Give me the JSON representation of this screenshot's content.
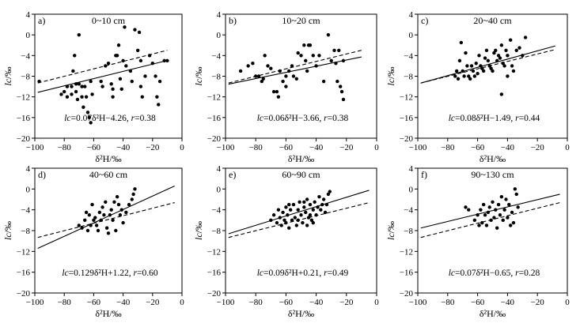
{
  "figure": {
    "description_visible": false
  },
  "chart_data": [
    {
      "type": "scatter",
      "panel_label": "a)",
      "title": "0~10 cm",
      "xlabel": "δ²H/‰",
      "ylabel": "lc/‰",
      "xlim": [
        -100,
        0
      ],
      "ylim": [
        -20,
        4
      ],
      "xticks": [
        -100,
        -80,
        -60,
        -40,
        -20,
        0
      ],
      "yticks": [
        -20,
        -16,
        -12,
        -8,
        -4,
        0,
        4
      ],
      "points": [
        [
          -97,
          -9
        ],
        [
          -82,
          -11.5
        ],
        [
          -80,
          -11
        ],
        [
          -78,
          -10
        ],
        [
          -78,
          -12
        ],
        [
          -75,
          -10
        ],
        [
          -75,
          -11.5
        ],
        [
          -74,
          -7
        ],
        [
          -73,
          -4
        ],
        [
          -72,
          -9.5
        ],
        [
          -72,
          -11
        ],
        [
          -71,
          -12.5
        ],
        [
          -70,
          0
        ],
        [
          -70,
          -9.5
        ],
        [
          -68,
          -10
        ],
        [
          -68,
          -12
        ],
        [
          -67,
          -14
        ],
        [
          -66,
          -10
        ],
        [
          -65,
          -12
        ],
        [
          -64,
          -15
        ],
        [
          -63,
          -16
        ],
        [
          -62,
          -17
        ],
        [
          -62,
          -9
        ],
        [
          -61,
          -11.5
        ],
        [
          -55,
          -9
        ],
        [
          -54,
          -10
        ],
        [
          -52,
          -6
        ],
        [
          -50,
          -5.5
        ],
        [
          -48,
          -9.5
        ],
        [
          -47,
          -10.5
        ],
        [
          -47,
          -12
        ],
        [
          -45,
          -4
        ],
        [
          -44,
          -4
        ],
        [
          -43,
          -2
        ],
        [
          -42,
          -8.5
        ],
        [
          -41,
          -10.5
        ],
        [
          -40,
          -5
        ],
        [
          -39,
          1.5
        ],
        [
          -38,
          -6
        ],
        [
          -35,
          -7
        ],
        [
          -34,
          -9
        ],
        [
          -32,
          1
        ],
        [
          -30,
          -3
        ],
        [
          -29,
          0.5
        ],
        [
          -28,
          -5
        ],
        [
          -28,
          -10
        ],
        [
          -27,
          -12
        ],
        [
          -25,
          -8
        ],
        [
          -22,
          -4
        ],
        [
          -20,
          -5.5
        ],
        [
          -18,
          -8
        ],
        [
          -17,
          -12
        ],
        [
          -16,
          -13.5
        ],
        [
          -15,
          -9
        ],
        [
          -12,
          -5
        ],
        [
          -10,
          -5
        ]
      ],
      "fit_line": {
        "slope": 0.07,
        "intercept": -4.26,
        "x_range": [
          -98,
          -10
        ],
        "style": "solid"
      },
      "reference_line": {
        "slope": 0.072,
        "intercept": -2.26,
        "x_range": [
          -98,
          -10
        ],
        "style": "dashed"
      },
      "equation": {
        "lc_symbol": "lc",
        "text": "=0.07δ²H−4.26, ",
        "r_symbol": "r",
        "r_value": "=0.38"
      }
    },
    {
      "type": "scatter",
      "panel_label": "b)",
      "title": "10~20 cm",
      "xlabel": "δ²H/‰",
      "ylabel": "lc/‰",
      "xlim": [
        -100,
        0
      ],
      "ylim": [
        -20,
        4
      ],
      "xticks": [
        -100,
        -80,
        -60,
        -40,
        -20,
        0
      ],
      "yticks": [
        -20,
        -16,
        -12,
        -8,
        -4,
        0,
        4
      ],
      "points": [
        [
          -90,
          -7
        ],
        [
          -85,
          -6
        ],
        [
          -82,
          -5.5
        ],
        [
          -80,
          -8
        ],
        [
          -78,
          -8
        ],
        [
          -76,
          -9
        ],
        [
          -75,
          -8.5
        ],
        [
          -74,
          -4
        ],
        [
          -72,
          -6
        ],
        [
          -70,
          -6.5
        ],
        [
          -68,
          -11
        ],
        [
          -66,
          -11
        ],
        [
          -65,
          -12
        ],
        [
          -64,
          -7
        ],
        [
          -62,
          -9
        ],
        [
          -60,
          -8
        ],
        [
          -60,
          -10
        ],
        [
          -58,
          -7
        ],
        [
          -56,
          -6
        ],
        [
          -55,
          -8
        ],
        [
          -53,
          -8.5
        ],
        [
          -52,
          -3.5
        ],
        [
          -50,
          -4
        ],
        [
          -48,
          -2
        ],
        [
          -47,
          -5
        ],
        [
          -46,
          -7
        ],
        [
          -45,
          -2
        ],
        [
          -44,
          -2
        ],
        [
          -42,
          -4
        ],
        [
          -40,
          -6
        ],
        [
          -38,
          -4
        ],
        [
          -35,
          -9
        ],
        [
          -32,
          0
        ],
        [
          -30,
          -5
        ],
        [
          -28,
          -3
        ],
        [
          -27,
          -5.5
        ],
        [
          -26,
          -9
        ],
        [
          -25,
          -3
        ],
        [
          -24,
          -10
        ],
        [
          -23,
          -11
        ],
        [
          -22,
          -12.5
        ],
        [
          -22,
          -5
        ]
      ],
      "fit_line": {
        "slope": 0.06,
        "intercept": -3.66,
        "x_range": [
          -98,
          -10
        ],
        "style": "solid"
      },
      "reference_line": {
        "slope": 0.072,
        "intercept": -2.26,
        "x_range": [
          -98,
          -10
        ],
        "style": "dashed"
      },
      "equation": {
        "lc_symbol": "lc",
        "text": "=0.06δ²H−3.66, ",
        "r_symbol": "r",
        "r_value": "=0.38"
      }
    },
    {
      "type": "scatter",
      "panel_label": "c)",
      "title": "20~40 cm",
      "xlabel": "δ²H/‰",
      "ylabel": "lc/‰",
      "xlim": [
        -100,
        0
      ],
      "ylim": [
        -20,
        4
      ],
      "xticks": [
        -100,
        -80,
        -60,
        -40,
        -20,
        0
      ],
      "yticks": [
        -20,
        -16,
        -12,
        -8,
        -4,
        0,
        4
      ],
      "points": [
        [
          -75,
          -8
        ],
        [
          -74,
          -7
        ],
        [
          -73,
          -8.5
        ],
        [
          -72,
          -5
        ],
        [
          -71,
          -1.5
        ],
        [
          -70,
          -7
        ],
        [
          -69,
          -8
        ],
        [
          -68,
          -3.5
        ],
        [
          -67,
          -6
        ],
        [
          -66,
          -8
        ],
        [
          -65,
          -8.5
        ],
        [
          -64,
          -6
        ],
        [
          -63,
          -7
        ],
        [
          -62,
          -8
        ],
        [
          -61,
          -5.5
        ],
        [
          -60,
          -7.5
        ],
        [
          -59,
          -4
        ],
        [
          -58,
          -6
        ],
        [
          -57,
          -6.5
        ],
        [
          -56,
          -7
        ],
        [
          -55,
          -4.5
        ],
        [
          -54,
          -3
        ],
        [
          -53,
          -5
        ],
        [
          -52,
          -6
        ],
        [
          -51,
          -6.5
        ],
        [
          -50,
          -7
        ],
        [
          -49,
          -3.5
        ],
        [
          -48,
          -3
        ],
        [
          -47,
          -5
        ],
        [
          -46,
          -4
        ],
        [
          -45,
          -4.5
        ],
        [
          -44,
          -2
        ],
        [
          -44,
          -11.5
        ],
        [
          -43,
          -5.5
        ],
        [
          -42,
          -6
        ],
        [
          -41,
          -3
        ],
        [
          -40,
          -4
        ],
        [
          -40,
          -8
        ],
        [
          -38,
          -1
        ],
        [
          -37,
          -6
        ],
        [
          -36,
          -7
        ],
        [
          -34,
          -3
        ],
        [
          -32,
          -2.5
        ],
        [
          -30,
          -4
        ],
        [
          -28,
          -0.5
        ]
      ],
      "fit_line": {
        "slope": 0.08,
        "intercept": -1.49,
        "x_range": [
          -98,
          -8
        ],
        "style": "solid"
      },
      "reference_line": {
        "slope": 0.072,
        "intercept": -2.26,
        "x_range": [
          -98,
          -8
        ],
        "style": "dashed"
      },
      "equation": {
        "lc_symbol": "lc",
        "text": "=0.08δ²H−1.49, ",
        "r_symbol": "r",
        "r_value": "=0.44"
      }
    },
    {
      "type": "scatter",
      "panel_label": "d)",
      "title": "40~60 cm",
      "xlabel": "δ²H/‰",
      "ylabel": "lc/‰",
      "xlim": [
        -100,
        0
      ],
      "ylim": [
        -20,
        4
      ],
      "xticks": [
        -100,
        -80,
        -60,
        -40,
        -20,
        0
      ],
      "yticks": [
        -20,
        -16,
        -12,
        -8,
        -4,
        0,
        4
      ],
      "points": [
        [
          -70,
          -7
        ],
        [
          -68,
          -7.5
        ],
        [
          -66,
          -6
        ],
        [
          -65,
          -4.5
        ],
        [
          -64,
          -8
        ],
        [
          -63,
          -5
        ],
        [
          -62,
          -7
        ],
        [
          -61,
          -3
        ],
        [
          -60,
          -6
        ],
        [
          -59,
          -5.5
        ],
        [
          -58,
          -7
        ],
        [
          -57,
          -8
        ],
        [
          -56,
          -4.5
        ],
        [
          -55,
          -6
        ],
        [
          -54,
          -3.5
        ],
        [
          -53,
          -5
        ],
        [
          -52,
          -2.5
        ],
        [
          -51,
          -7.5
        ],
        [
          -50,
          -8.5
        ],
        [
          -49,
          -5
        ],
        [
          -48,
          -4
        ],
        [
          -47,
          -6
        ],
        [
          -46,
          -2.5
        ],
        [
          -45,
          -8
        ],
        [
          -44,
          -1.5
        ],
        [
          -43,
          -3
        ],
        [
          -42,
          -5
        ],
        [
          -41,
          -4
        ],
        [
          -40,
          -6.5
        ],
        [
          -38,
          -4.5
        ],
        [
          -36,
          -3
        ],
        [
          -34,
          -2
        ],
        [
          -33,
          -1
        ],
        [
          -32,
          0
        ]
      ],
      "fit_line": {
        "slope": 0.129,
        "intercept": 1.22,
        "x_range": [
          -98,
          -5
        ],
        "style": "solid"
      },
      "reference_line": {
        "slope": 0.072,
        "intercept": -2.26,
        "x_range": [
          -98,
          -5
        ],
        "style": "dashed"
      },
      "equation": {
        "lc_symbol": "lc",
        "text": "=0.129δ²H+1.22, ",
        "r_symbol": "r",
        "r_value": "=0.60"
      }
    },
    {
      "type": "scatter",
      "panel_label": "e)",
      "title": "60~90 cm",
      "xlabel": "δ²H/‰",
      "ylabel": "lc/‰",
      "xlim": [
        -100,
        0
      ],
      "ylim": [
        -20,
        4
      ],
      "xticks": [
        -100,
        -80,
        -60,
        -40,
        -20,
        0
      ],
      "yticks": [
        -20,
        -16,
        -12,
        -8,
        -4,
        0,
        4
      ],
      "points": [
        [
          -70,
          -6
        ],
        [
          -68,
          -5
        ],
        [
          -66,
          -6.5
        ],
        [
          -65,
          -4
        ],
        [
          -64,
          -5.5
        ],
        [
          -63,
          -7
        ],
        [
          -62,
          -4.5
        ],
        [
          -61,
          -6
        ],
        [
          -60,
          -3.5
        ],
        [
          -59,
          -5
        ],
        [
          -58,
          -7.5
        ],
        [
          -57,
          -4
        ],
        [
          -56,
          -6
        ],
        [
          -55,
          -3
        ],
        [
          -54,
          -5.5
        ],
        [
          -53,
          -7
        ],
        [
          -52,
          -4
        ],
        [
          -51,
          -2.5
        ],
        [
          -50,
          -5
        ],
        [
          -49,
          -6.5
        ],
        [
          -48,
          -3.5
        ],
        [
          -47,
          -4.5
        ],
        [
          -46,
          -2
        ],
        [
          -45,
          -5.5
        ],
        [
          -44,
          -3
        ],
        [
          -43,
          -6
        ],
        [
          -42,
          -4
        ],
        [
          -41,
          -2.5
        ],
        [
          -40,
          -5
        ],
        [
          -39,
          -3.5
        ],
        [
          -38,
          -1.5
        ],
        [
          -37,
          -4
        ],
        [
          -36,
          -3
        ],
        [
          -35,
          -2
        ],
        [
          -34,
          -4.5
        ],
        [
          -33,
          -3
        ],
        [
          -32,
          -1
        ],
        [
          -31,
          -0.5
        ],
        [
          -58,
          -3
        ],
        [
          -52,
          -6
        ],
        [
          -46,
          -7
        ],
        [
          -44,
          -5
        ],
        [
          -60,
          -6.5
        ],
        [
          -48,
          -2.5
        ],
        [
          -42,
          -6.5
        ]
      ],
      "fit_line": {
        "slope": 0.09,
        "intercept": 0.21,
        "x_range": [
          -98,
          -5
        ],
        "style": "solid"
      },
      "reference_line": {
        "slope": 0.072,
        "intercept": -2.26,
        "x_range": [
          -98,
          -5
        ],
        "style": "dashed"
      },
      "equation": {
        "lc_symbol": "lc",
        "text": "=0.09δ²H+0.21, ",
        "r_symbol": "r",
        "r_value": "=0.49"
      }
    },
    {
      "type": "scatter",
      "panel_label": "f)",
      "title": "90~130 cm",
      "xlabel": "δ²H/‰",
      "ylabel": "lc/‰",
      "xlim": [
        -100,
        0
      ],
      "ylim": [
        -20,
        4
      ],
      "xticks": [
        -100,
        -80,
        -60,
        -40,
        -20,
        0
      ],
      "yticks": [
        -20,
        -16,
        -12,
        -8,
        -4,
        0,
        4
      ],
      "points": [
        [
          -68,
          -3.5
        ],
        [
          -66,
          -4
        ],
        [
          -62,
          -6
        ],
        [
          -60,
          -5
        ],
        [
          -59,
          -7
        ],
        [
          -58,
          -4
        ],
        [
          -57,
          -6.5
        ],
        [
          -56,
          -3
        ],
        [
          -55,
          -5
        ],
        [
          -54,
          -7
        ],
        [
          -53,
          -4.5
        ],
        [
          -52,
          -3.5
        ],
        [
          -51,
          -6
        ],
        [
          -50,
          -2.5
        ],
        [
          -49,
          -5.5
        ],
        [
          -48,
          -4
        ],
        [
          -47,
          -7.5
        ],
        [
          -46,
          -3
        ],
        [
          -45,
          -5
        ],
        [
          -44,
          -1.5
        ],
        [
          -43,
          -6
        ],
        [
          -42,
          -4
        ],
        [
          -41,
          -2
        ],
        [
          -40,
          -5.5
        ],
        [
          -39,
          -3
        ],
        [
          -38,
          -7
        ],
        [
          -37,
          -4.5
        ],
        [
          -36,
          -6.5
        ],
        [
          -35,
          0
        ],
        [
          -34,
          -1
        ],
        [
          -33,
          -3.5
        ]
      ],
      "fit_line": {
        "slope": 0.07,
        "intercept": -0.65,
        "x_range": [
          -98,
          -5
        ],
        "style": "solid"
      },
      "reference_line": {
        "slope": 0.072,
        "intercept": -2.26,
        "x_range": [
          -98,
          -5
        ],
        "style": "dashed"
      },
      "equation": {
        "lc_symbol": "lc",
        "text": "=0.07δ²H−0.65, ",
        "r_symbol": "r",
        "r_value": "=0.28"
      }
    }
  ]
}
